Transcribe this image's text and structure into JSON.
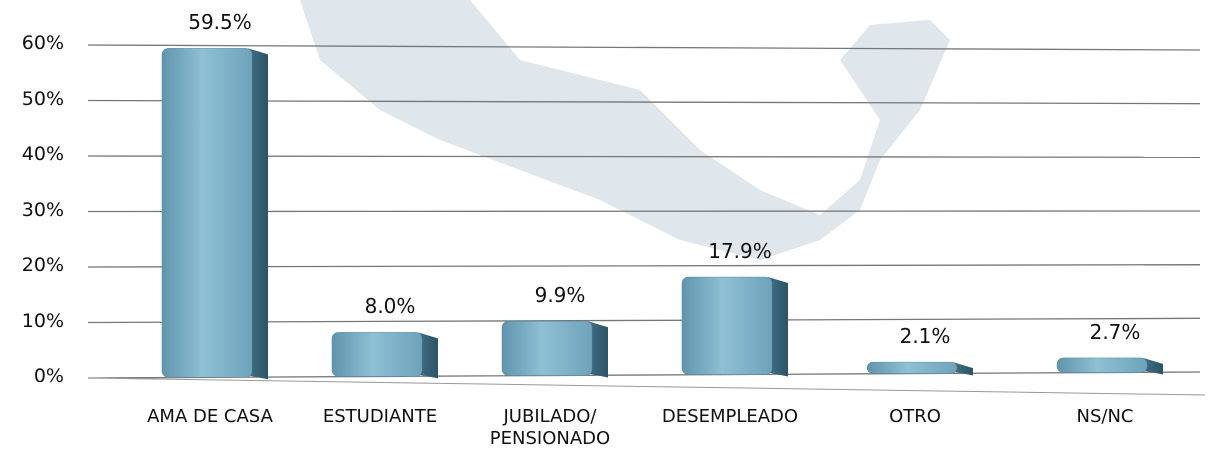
{
  "chart_data": {
    "type": "bar",
    "categories": [
      "AMA DE CASA",
      "ESTUDIANTE",
      "JUBILADO/ PENSIONADO",
      "DESEMPLEADO",
      "OTRO",
      "NS/NC"
    ],
    "values": [
      59.5,
      8.0,
      9.9,
      17.9,
      2.1,
      2.7
    ],
    "value_labels": [
      "59.5%",
      "8.0%",
      "9.9%",
      "17.9%",
      "2.1%",
      "2.7%"
    ],
    "color": "#7fb3c9",
    "ylim": [
      0,
      60
    ],
    "yticks": [
      {
        "value": 0,
        "label": "0%"
      },
      {
        "value": 10,
        "label": "10%"
      },
      {
        "value": 20,
        "label": "20%"
      },
      {
        "value": 30,
        "label": "30%"
      },
      {
        "value": 40,
        "label": "40%"
      },
      {
        "value": 50,
        "label": "50%"
      },
      {
        "value": 60,
        "label": "60%"
      }
    ],
    "grid": true
  }
}
